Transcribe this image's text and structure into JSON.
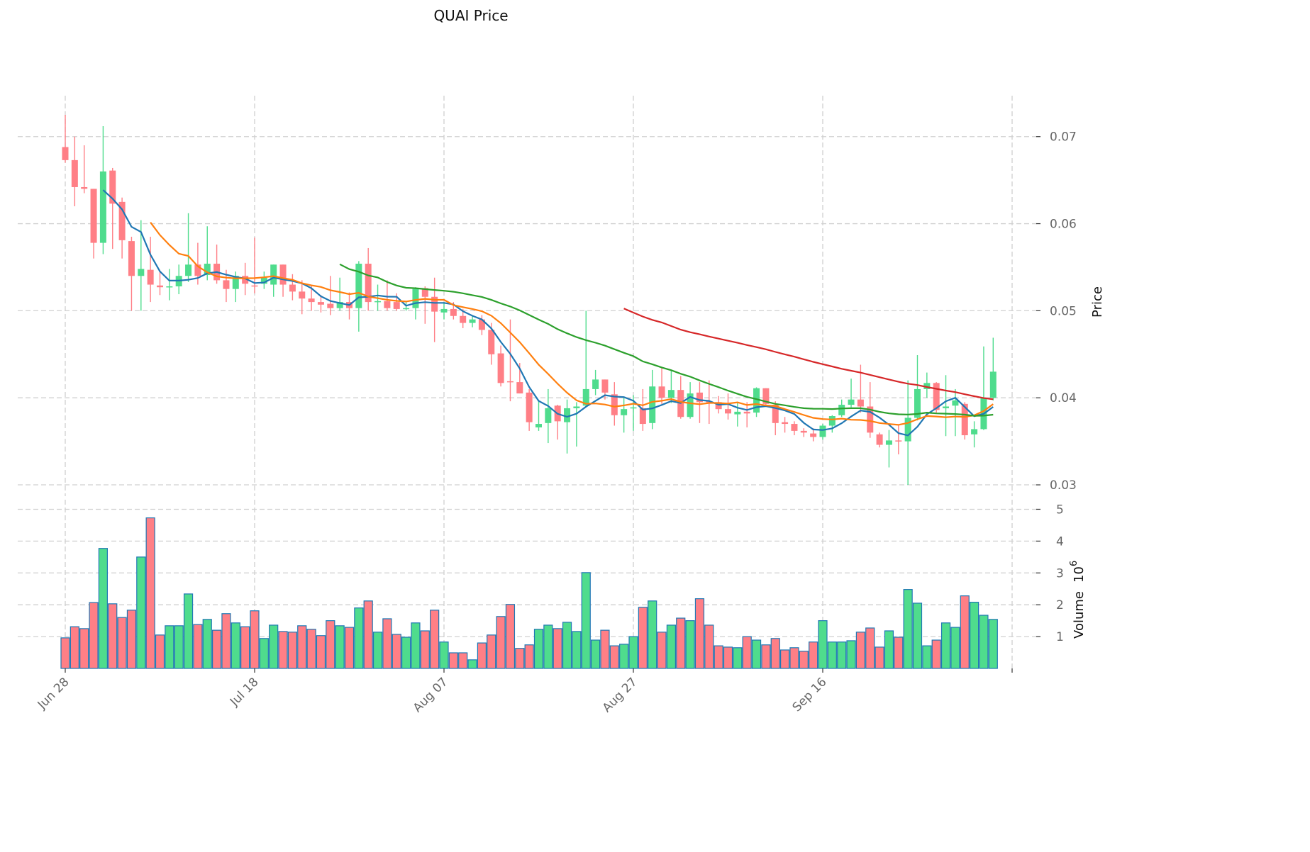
{
  "chart_data": {
    "type": "candlestick",
    "title": "QUAI Price",
    "price_axis": {
      "label": "Price",
      "ticks": [
        0.03,
        0.04,
        0.05,
        0.06,
        0.07
      ],
      "tick_labels": [
        "0.03",
        "0.04",
        "0.05",
        "0.06",
        "0.07"
      ],
      "range": [
        0.0287,
        0.0747
      ]
    },
    "volume_axis": {
      "label": "Volume",
      "multiplier": "10",
      "exponent": "6",
      "ticks": [
        1,
        2,
        3,
        4,
        5
      ],
      "tick_labels": [
        "1",
        "2",
        "3",
        "4",
        "5"
      ],
      "range": [
        0,
        5.3
      ]
    },
    "x_ticks": [
      {
        "index": 0,
        "label": "Jun 28"
      },
      {
        "index": 20,
        "label": "Jul 18"
      },
      {
        "index": 40,
        "label": "Aug 07"
      },
      {
        "index": 60,
        "label": "Aug 27"
      },
      {
        "index": 80,
        "label": "Sep 16"
      },
      {
        "index": 100,
        "label": ""
      }
    ],
    "grid": true,
    "colors": {
      "up": "#4fdc8d",
      "down": "#ff7f86",
      "volume_edge": "#1f77b4",
      "ma5": "#1f77b4",
      "ma10": "#ff7f0e",
      "ma30": "#2ca02c",
      "ma60": "#d62728"
    },
    "moving_averages": [
      5,
      10,
      30,
      60
    ],
    "ohlc": [
      [
        0.0688,
        0.0725,
        0.067,
        0.0673
      ],
      [
        0.0673,
        0.07,
        0.062,
        0.0642
      ],
      [
        0.0642,
        0.069,
        0.0635,
        0.064
      ],
      [
        0.064,
        0.064,
        0.056,
        0.0578
      ],
      [
        0.0578,
        0.0712,
        0.0565,
        0.066
      ],
      [
        0.0661,
        0.0664,
        0.0571,
        0.0623
      ],
      [
        0.0625,
        0.063,
        0.056,
        0.0581
      ],
      [
        0.058,
        0.0585,
        0.05,
        0.054
      ],
      [
        0.054,
        0.0604,
        0.05,
        0.0548
      ],
      [
        0.0547,
        0.0585,
        0.051,
        0.053
      ],
      [
        0.0529,
        0.0545,
        0.0518,
        0.0527
      ],
      [
        0.0527,
        0.0548,
        0.0512,
        0.0528
      ],
      [
        0.0528,
        0.0553,
        0.0519,
        0.054
      ],
      [
        0.054,
        0.0612,
        0.0533,
        0.0553
      ],
      [
        0.0553,
        0.0578,
        0.053,
        0.054
      ],
      [
        0.0541,
        0.0597,
        0.0535,
        0.0554
      ],
      [
        0.0554,
        0.0576,
        0.0531,
        0.0535
      ],
      [
        0.0535,
        0.0547,
        0.051,
        0.0525
      ],
      [
        0.0525,
        0.0545,
        0.051,
        0.054
      ],
      [
        0.054,
        0.0555,
        0.0518,
        0.0531
      ],
      [
        0.0529,
        0.0584,
        0.052,
        0.0528
      ],
      [
        0.0531,
        0.0545,
        0.0525,
        0.0538
      ],
      [
        0.053,
        0.0553,
        0.0516,
        0.0553
      ],
      [
        0.0553,
        0.0553,
        0.0516,
        0.053
      ],
      [
        0.053,
        0.0542,
        0.0512,
        0.0522
      ],
      [
        0.0522,
        0.0535,
        0.0496,
        0.0514
      ],
      [
        0.0514,
        0.0529,
        0.05,
        0.051
      ],
      [
        0.051,
        0.0518,
        0.0498,
        0.0507
      ],
      [
        0.0508,
        0.054,
        0.0495,
        0.0503
      ],
      [
        0.0503,
        0.0538,
        0.05,
        0.051
      ],
      [
        0.051,
        0.0521,
        0.049,
        0.0503
      ],
      [
        0.0503,
        0.0557,
        0.0476,
        0.0554
      ],
      [
        0.0554,
        0.0572,
        0.05,
        0.051
      ],
      [
        0.051,
        0.053,
        0.05,
        0.0511
      ],
      [
        0.0511,
        0.0535,
        0.05,
        0.0503
      ],
      [
        0.051,
        0.052,
        0.05,
        0.0502
      ],
      [
        0.0502,
        0.051,
        0.05,
        0.0503
      ],
      [
        0.0503,
        0.0527,
        0.049,
        0.0525
      ],
      [
        0.0526,
        0.0528,
        0.0485,
        0.0516
      ],
      [
        0.0516,
        0.0538,
        0.0464,
        0.0499
      ],
      [
        0.0498,
        0.051,
        0.049,
        0.0502
      ],
      [
        0.0502,
        0.051,
        0.049,
        0.0494
      ],
      [
        0.0494,
        0.0502,
        0.048,
        0.0486
      ],
      [
        0.0486,
        0.0495,
        0.0481,
        0.049
      ],
      [
        0.049,
        0.0495,
        0.0472,
        0.0478
      ],
      [
        0.0478,
        0.0486,
        0.0438,
        0.045
      ],
      [
        0.0451,
        0.046,
        0.0413,
        0.0417
      ],
      [
        0.0419,
        0.049,
        0.0396,
        0.0418
      ],
      [
        0.0418,
        0.044,
        0.0405,
        0.0405
      ],
      [
        0.0406,
        0.041,
        0.0362,
        0.0372
      ],
      [
        0.0366,
        0.0396,
        0.0362,
        0.037
      ],
      [
        0.0371,
        0.041,
        0.0348,
        0.0388
      ],
      [
        0.0391,
        0.0392,
        0.0352,
        0.0373
      ],
      [
        0.0372,
        0.0398,
        0.0336,
        0.0388
      ],
      [
        0.0388,
        0.0395,
        0.0344,
        0.039
      ],
      [
        0.0391,
        0.05,
        0.039,
        0.041
      ],
      [
        0.041,
        0.0432,
        0.0403,
        0.0421
      ],
      [
        0.0421,
        0.0421,
        0.0398,
        0.0406
      ],
      [
        0.0404,
        0.0418,
        0.0368,
        0.038
      ],
      [
        0.038,
        0.04,
        0.036,
        0.0387
      ],
      [
        0.0388,
        0.0403,
        0.0362,
        0.0389
      ],
      [
        0.0388,
        0.041,
        0.0362,
        0.037
      ],
      [
        0.0371,
        0.0432,
        0.0364,
        0.0413
      ],
      [
        0.0413,
        0.0434,
        0.0393,
        0.04
      ],
      [
        0.04,
        0.0431,
        0.0394,
        0.0409
      ],
      [
        0.0409,
        0.0425,
        0.0376,
        0.0378
      ],
      [
        0.0378,
        0.0418,
        0.0376,
        0.0405
      ],
      [
        0.0406,
        0.0418,
        0.0371,
        0.0395
      ],
      [
        0.0396,
        0.042,
        0.037,
        0.0395
      ],
      [
        0.0395,
        0.0402,
        0.0382,
        0.0387
      ],
      [
        0.0387,
        0.0405,
        0.0375,
        0.0382
      ],
      [
        0.0381,
        0.0395,
        0.0367,
        0.0384
      ],
      [
        0.0384,
        0.0395,
        0.0366,
        0.0382
      ],
      [
        0.0383,
        0.0412,
        0.0378,
        0.0411
      ],
      [
        0.0411,
        0.0411,
        0.039,
        0.0393
      ],
      [
        0.0392,
        0.0396,
        0.0357,
        0.0371
      ],
      [
        0.0372,
        0.0378,
        0.036,
        0.037
      ],
      [
        0.037,
        0.0373,
        0.0357,
        0.0362
      ],
      [
        0.0362,
        0.0365,
        0.0355,
        0.036
      ],
      [
        0.0359,
        0.0365,
        0.035,
        0.0355
      ],
      [
        0.0355,
        0.037,
        0.0352,
        0.0368
      ],
      [
        0.0368,
        0.038,
        0.036,
        0.0379
      ],
      [
        0.038,
        0.0398,
        0.0378,
        0.0392
      ],
      [
        0.0392,
        0.0422,
        0.0389,
        0.0398
      ],
      [
        0.0398,
        0.0438,
        0.0383,
        0.039
      ],
      [
        0.039,
        0.0418,
        0.0354,
        0.036
      ],
      [
        0.0358,
        0.036,
        0.0343,
        0.0346
      ],
      [
        0.0346,
        0.0363,
        0.032,
        0.0351
      ],
      [
        0.0351,
        0.0368,
        0.0335,
        0.035
      ],
      [
        0.035,
        0.042,
        0.03,
        0.0377
      ],
      [
        0.0377,
        0.0449,
        0.0374,
        0.041
      ],
      [
        0.041,
        0.0429,
        0.04,
        0.0417
      ],
      [
        0.0417,
        0.0418,
        0.0383,
        0.0386
      ],
      [
        0.0388,
        0.0426,
        0.0356,
        0.039
      ],
      [
        0.0391,
        0.041,
        0.0356,
        0.0397
      ],
      [
        0.0393,
        0.0395,
        0.0352,
        0.0357
      ],
      [
        0.0358,
        0.0373,
        0.0343,
        0.0364
      ],
      [
        0.0364,
        0.0459,
        0.0363,
        0.04
      ],
      [
        0.04,
        0.0469,
        0.0397,
        0.043
      ]
    ],
    "volume": [
      0.96,
      1.31,
      1.25,
      2.07,
      3.77,
      2.03,
      1.6,
      1.83,
      3.5,
      4.73,
      1.05,
      1.34,
      1.34,
      2.34,
      1.38,
      1.54,
      1.2,
      1.72,
      1.43,
      1.31,
      1.81,
      0.94,
      1.36,
      1.16,
      1.14,
      1.34,
      1.23,
      1.03,
      1.5,
      1.34,
      1.29,
      1.9,
      2.12,
      1.14,
      1.56,
      1.07,
      0.98,
      1.43,
      1.18,
      1.83,
      0.83,
      0.49,
      0.49,
      0.27,
      0.8,
      1.05,
      1.63,
      2.01,
      0.63,
      0.74,
      1.23,
      1.36,
      1.25,
      1.45,
      1.16,
      3.01,
      0.89,
      1.2,
      0.71,
      0.76,
      1.0,
      1.92,
      2.12,
      1.14,
      1.36,
      1.58,
      1.5,
      2.19,
      1.36,
      0.71,
      0.67,
      0.65,
      1.0,
      0.89,
      0.74,
      0.94,
      0.58,
      0.65,
      0.54,
      0.83,
      1.5,
      0.83,
      0.83,
      0.87,
      1.14,
      1.27,
      0.67,
      1.18,
      0.98,
      2.48,
      2.05,
      0.71,
      0.89,
      1.43,
      1.29,
      2.28,
      2.08,
      1.67,
      1.54
    ]
  }
}
